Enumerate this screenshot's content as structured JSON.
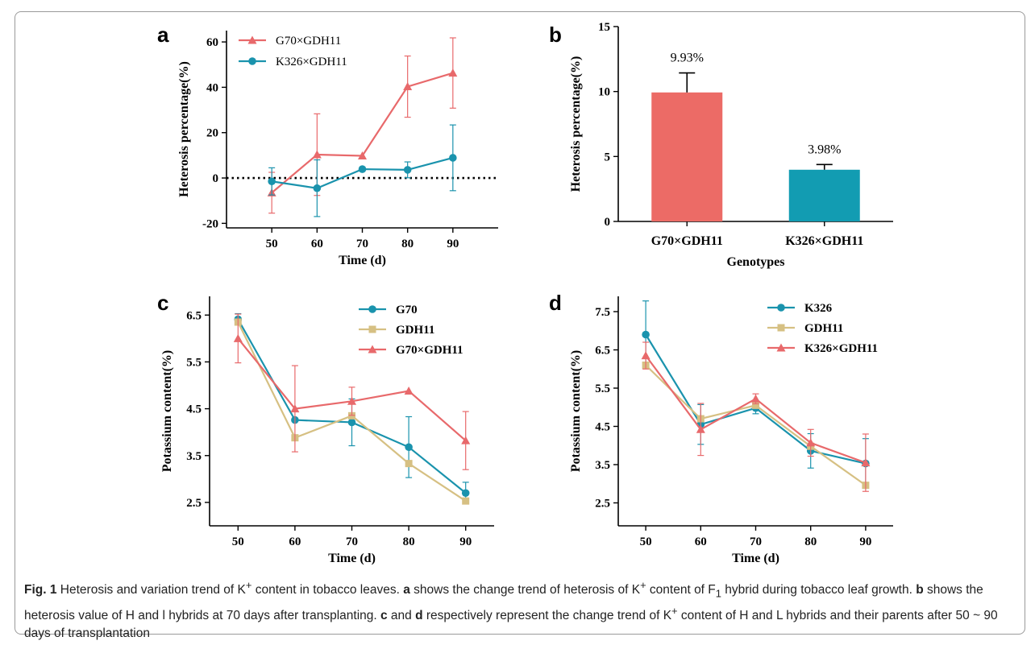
{
  "colors": {
    "red": "#e8696b",
    "teal": "#1a93ad",
    "khaki": "#d6c083",
    "bar_red": "#ec6b66",
    "bar_teal": "#129cb2"
  },
  "chart_data": [
    {
      "panel": "a",
      "type": "line",
      "xlabel": "Time (d)",
      "ylabel": "Heterosis percentage(%)",
      "xticks": [
        50,
        60,
        70,
        80,
        90
      ],
      "xlim": [
        40,
        100
      ],
      "yticks": [
        -20,
        0,
        20,
        40,
        60
      ],
      "ylim": [
        -22,
        65
      ],
      "reference_line": 0,
      "legend_position": "top-left",
      "series": [
        {
          "name": "G70×GDH11",
          "color": "#e8696b",
          "marker": "triangle",
          "x": [
            50,
            60,
            70,
            80,
            90
          ],
          "y": [
            -6.5,
            10.3,
            9.8,
            40.3,
            46.3
          ],
          "err": [
            9,
            18,
            0,
            13.5,
            15.5
          ]
        },
        {
          "name": "K326×GDH11",
          "color": "#1a93ad",
          "marker": "circle",
          "x": [
            50,
            60,
            70,
            80,
            90
          ],
          "y": [
            -1.5,
            -4.5,
            3.9,
            3.6,
            8.9
          ],
          "err": [
            6,
            12.5,
            0,
            3.5,
            14.5
          ]
        }
      ]
    },
    {
      "panel": "b",
      "type": "bar",
      "xlabel": "Genotypes",
      "ylabel": "Heterosis percentage(%)",
      "categories": [
        "G70×GDH11",
        "K326×GDH11"
      ],
      "values": [
        9.93,
        3.98
      ],
      "err": [
        1.5,
        0.4
      ],
      "labels": [
        "9.93%",
        "3.98%"
      ],
      "colors": [
        "#ec6b66",
        "#129cb2"
      ],
      "yticks": [
        0,
        5,
        10,
        15
      ],
      "ylim": [
        0,
        15
      ]
    },
    {
      "panel": "c",
      "type": "line",
      "xlabel": "Time (d)",
      "ylabel": "Potassium content(%)",
      "xticks": [
        50,
        60,
        70,
        80,
        90
      ],
      "xlim": [
        45,
        95
      ],
      "yticks": [
        2.5,
        3.5,
        4.5,
        5.5,
        6.5
      ],
      "ylim": [
        2.0,
        6.9
      ],
      "legend_position": "top-right",
      "series": [
        {
          "name": "G70",
          "color": "#1a93ad",
          "marker": "circle",
          "x": [
            50,
            60,
            70,
            80,
            90
          ],
          "y": [
            6.41,
            4.26,
            4.21,
            3.68,
            2.7
          ],
          "err": [
            0.12,
            0,
            0.5,
            0.65,
            0.23
          ]
        },
        {
          "name": "GDH11",
          "color": "#d6c083",
          "marker": "square",
          "x": [
            50,
            60,
            70,
            80,
            90
          ],
          "y": [
            6.35,
            3.88,
            4.35,
            3.33,
            2.53
          ],
          "err": [
            0,
            0,
            0,
            0,
            0
          ]
        },
        {
          "name": "G70×GDH11",
          "color": "#e8696b",
          "marker": "triangle",
          "x": [
            50,
            60,
            70,
            80,
            90
          ],
          "y": [
            6.0,
            4.5,
            4.66,
            4.88,
            3.82
          ],
          "err": [
            0.52,
            0.92,
            0.3,
            0,
            0.62
          ]
        }
      ]
    },
    {
      "panel": "d",
      "type": "line",
      "xlabel": "Time (d)",
      "ylabel": "Potassium content(%)",
      "xticks": [
        50,
        60,
        70,
        80,
        90
      ],
      "xlim": [
        45,
        95
      ],
      "yticks": [
        2.5,
        3.5,
        4.5,
        5.5,
        6.5,
        7.5
      ],
      "ylim": [
        1.9,
        7.9
      ],
      "legend_position": "top-right",
      "series": [
        {
          "name": "K326",
          "color": "#1a93ad",
          "marker": "circle",
          "x": [
            50,
            60,
            70,
            80,
            90
          ],
          "y": [
            6.9,
            4.55,
            4.98,
            3.86,
            3.53
          ],
          "err": [
            0.88,
            0.52,
            0.15,
            0.45,
            0.65
          ]
        },
        {
          "name": "GDH11",
          "color": "#d6c083",
          "marker": "square",
          "x": [
            50,
            60,
            70,
            80,
            90
          ],
          "y": [
            6.1,
            4.7,
            5.05,
            3.98,
            2.96
          ],
          "err": [
            0,
            0,
            0,
            0,
            0
          ]
        },
        {
          "name": "K326×GDH11",
          "color": "#e8696b",
          "marker": "triangle",
          "x": [
            50,
            60,
            70,
            80,
            90
          ],
          "y": [
            6.35,
            4.42,
            5.22,
            4.07,
            3.55
          ],
          "err": [
            0.35,
            0.68,
            0.13,
            0.35,
            0.75
          ]
        }
      ]
    }
  ],
  "panel_letters": [
    "a",
    "b",
    "c",
    "d"
  ],
  "caption": {
    "fig_label": "Fig. 1",
    "t1": "  Heterosis and variation trend of K",
    "plus": "+",
    "t2": " content in tobacco leaves. ",
    "a": "a",
    "t3": " shows the change trend of heterosis of K",
    "t4": " content of F",
    "sub1": "1",
    "t5": " hybrid during tobacco leaf growth. ",
    "b": "b",
    "t6": " shows the heterosis value of H and l hybrids at 70 days after transplanting. ",
    "c": "c",
    "t7": " and ",
    "d": "d",
    "t8": " respectively represent the change trend of K",
    "t9": " content of H and L hybrids and their parents after 50 ~ 90 days of transplantation"
  }
}
